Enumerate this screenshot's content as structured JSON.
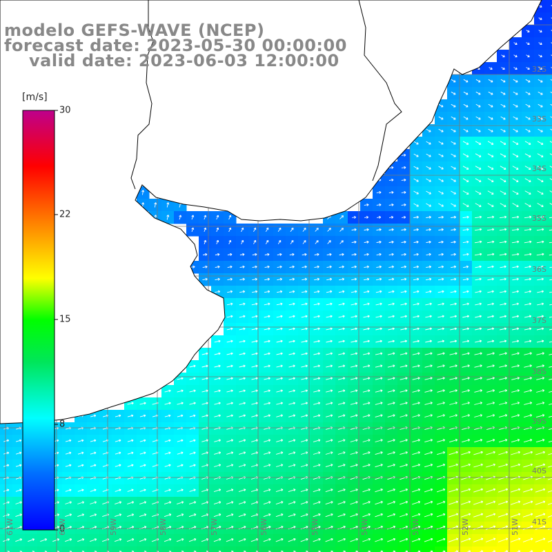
{
  "title": {
    "line1": "modelo GEFS-WAVE (NCEP)",
    "line2": "forecast date: 2023-05-30 00:00:00",
    "line3": "valid date: 2023-06-03 12:00:00"
  },
  "colorbar": {
    "unit": "[m/s]",
    "ticks": [
      "30",
      "22",
      "15",
      "8",
      "0"
    ],
    "min": 0,
    "max": 30,
    "colors": [
      "#0000ff",
      "#0090ff",
      "#00ffff",
      "#00ff00",
      "#ffff00",
      "#ff8000",
      "#ff0000",
      "#c00090"
    ]
  },
  "latitude_labels": [
    "32S",
    "33S",
    "34S",
    "35S",
    "36S",
    "37S",
    "38S",
    "39S",
    "40S",
    "41S"
  ],
  "longitude_labels": [
    "61W",
    "60W",
    "59W",
    "58W",
    "57W",
    "56W",
    "55W",
    "54W",
    "53W",
    "52W",
    "51W"
  ],
  "colors": {
    "land": "#ffffff",
    "grid": "#777777",
    "coast": "#000000",
    "arrow": "#ffffff"
  }
}
